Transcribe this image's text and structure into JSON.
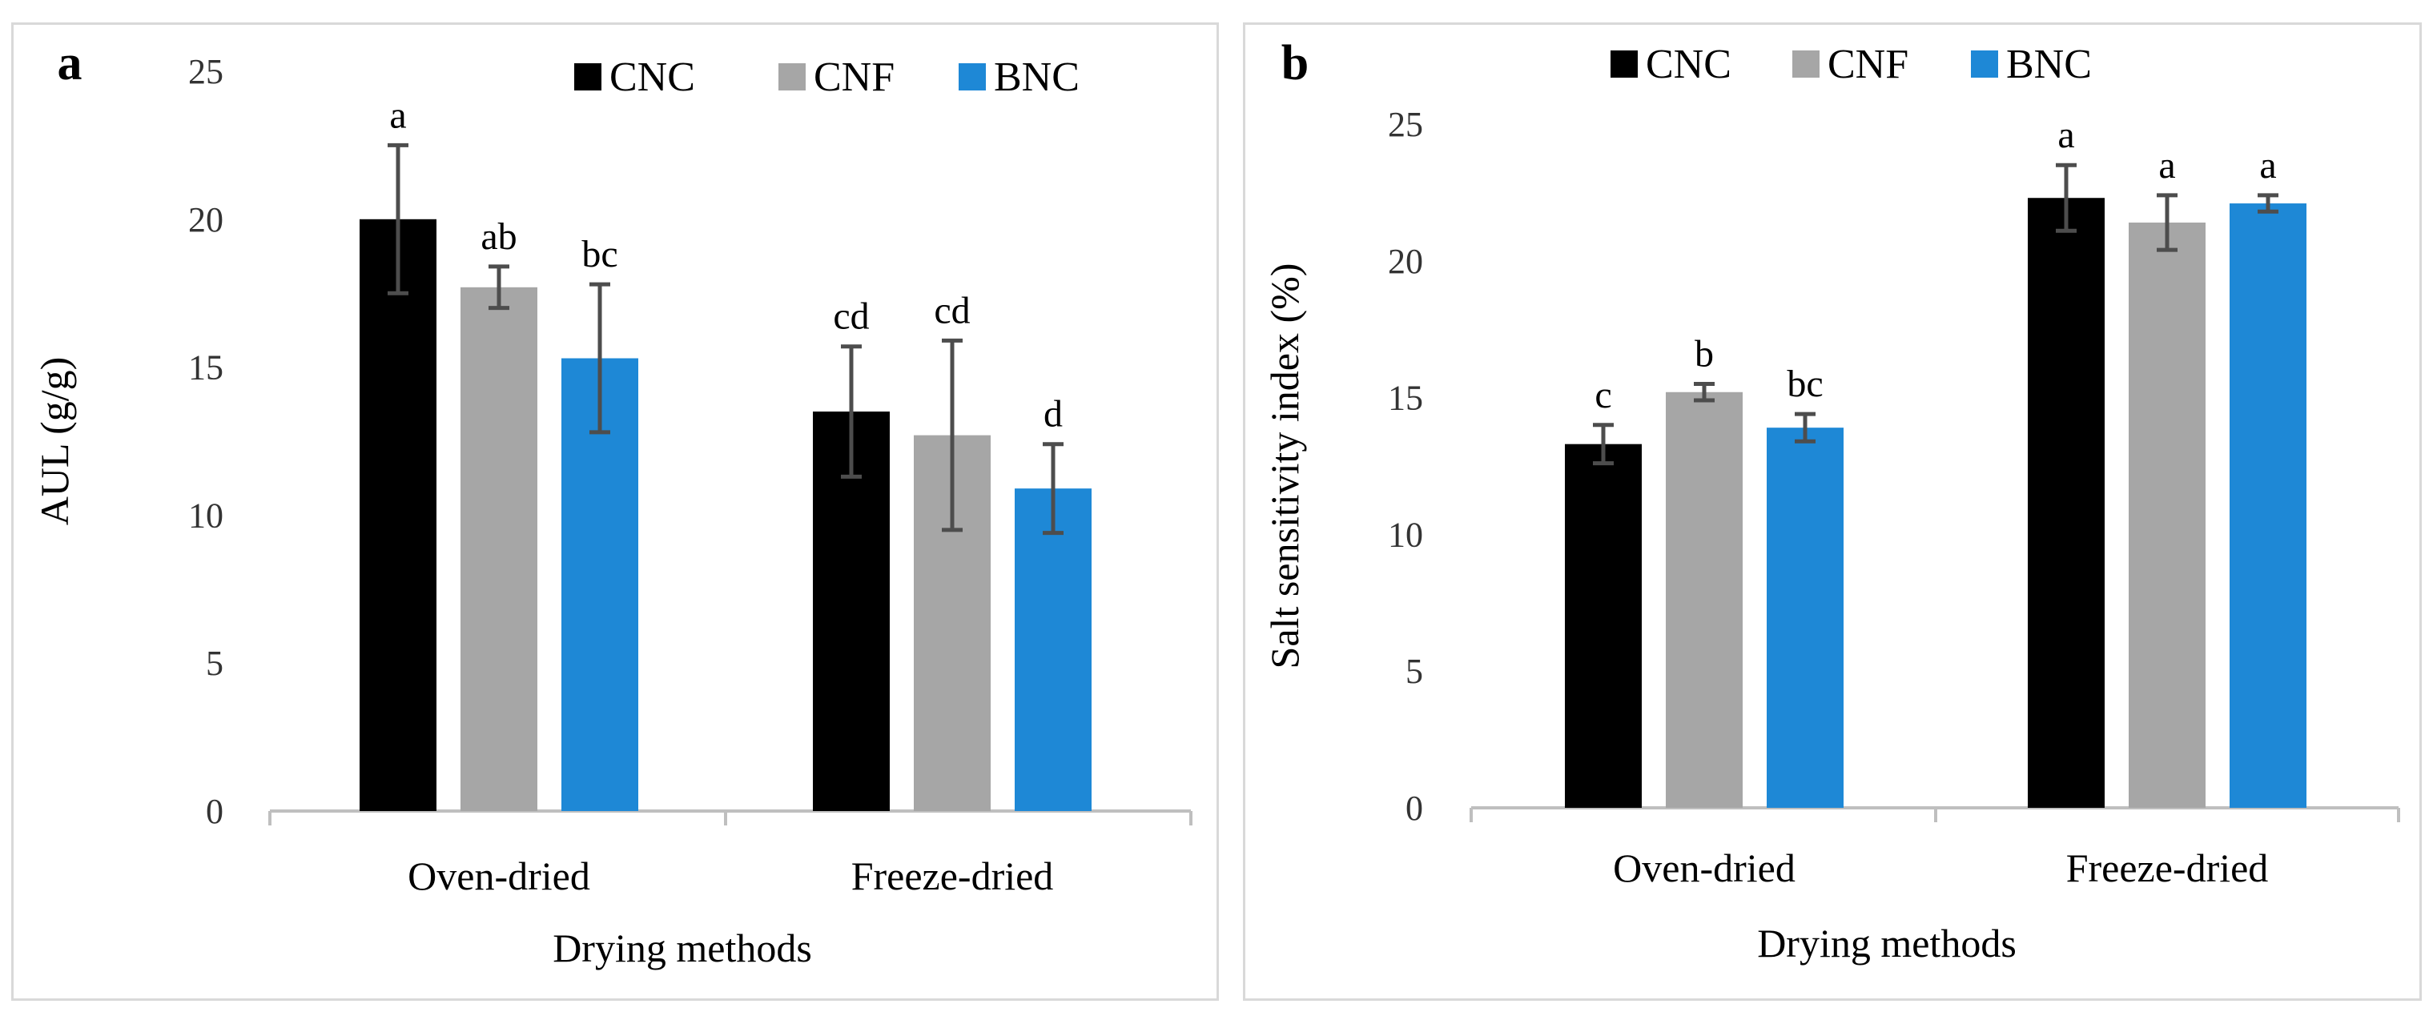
{
  "colors": {
    "CNC": "#000000",
    "CNF": "#a6a6a6",
    "BNC": "#1e88d6",
    "axis": "#bfbfbf",
    "error": "#4d4d4d"
  },
  "chart_data": [
    {
      "type": "bar",
      "panel_label": "a",
      "categories": [
        "Oven-dried",
        "Freeze-dried"
      ],
      "series": [
        {
          "name": "CNC",
          "values": [
            20.0,
            13.5
          ],
          "errors": [
            2.5,
            2.2
          ],
          "letters": [
            "a",
            "cd"
          ]
        },
        {
          "name": "CNF",
          "values": [
            17.7,
            12.7
          ],
          "errors": [
            0.7,
            3.2
          ],
          "letters": [
            "ab",
            "cd"
          ]
        },
        {
          "name": "BNC",
          "values": [
            15.3,
            10.9
          ],
          "errors": [
            2.5,
            1.5
          ],
          "letters": [
            "bc",
            "d"
          ]
        }
      ],
      "xlabel": "Drying methods",
      "ylabel": "AUL (g/g)",
      "ylim": [
        0,
        25
      ],
      "yticks": [
        "0",
        "5",
        "10",
        "15",
        "20",
        "25"
      ],
      "legend": "top-right"
    },
    {
      "type": "bar",
      "panel_label": "b",
      "categories": [
        "Oven-dried",
        "Freeze-dried"
      ],
      "series": [
        {
          "name": "CNC",
          "values": [
            13.3,
            22.3
          ],
          "errors": [
            0.7,
            1.2
          ],
          "letters": [
            "c",
            "a"
          ]
        },
        {
          "name": "CNF",
          "values": [
            15.2,
            21.4
          ],
          "errors": [
            0.3,
            1.0
          ],
          "letters": [
            "b",
            "a"
          ]
        },
        {
          "name": "BNC",
          "values": [
            13.9,
            22.1
          ],
          "errors": [
            0.5,
            0.3
          ],
          "letters": [
            "bc",
            "a"
          ]
        }
      ],
      "xlabel": "Drying methods",
      "ylabel": "Salt sensitivity index (%)",
      "ylim": [
        0,
        25
      ],
      "yticks": [
        "0",
        "5",
        "10",
        "15",
        "20",
        "25"
      ],
      "legend": "top"
    }
  ]
}
